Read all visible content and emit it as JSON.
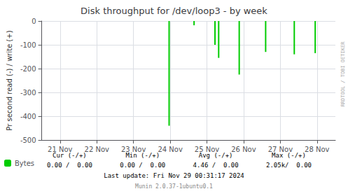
{
  "chart_data": {
    "type": "bar",
    "title": "Disk throughput for /dev/loop3 - by week",
    "ylabel": "Pr second read (-) / write (+)",
    "x": [
      3.47,
      4.15,
      4.72,
      4.82,
      5.38,
      6.1,
      6.88,
      7.45
    ],
    "series": [
      {
        "name": "Bytes",
        "color": "#00cc00",
        "values": [
          -440,
          -18,
          -100,
          -155,
          -225,
          -130,
          -140,
          -135
        ]
      }
    ],
    "xlim": [
      0,
      8
    ],
    "xticks": [
      {
        "value": 0.5,
        "label": "21 Nov"
      },
      {
        "value": 1.5,
        "label": "22 Nov"
      },
      {
        "value": 2.5,
        "label": "23 Nov"
      },
      {
        "value": 3.5,
        "label": "24 Nov"
      },
      {
        "value": 4.5,
        "label": "25 Nov"
      },
      {
        "value": 5.5,
        "label": "26 Nov"
      },
      {
        "value": 6.5,
        "label": "27 Nov"
      },
      {
        "value": 7.5,
        "label": "28 Nov"
      }
    ],
    "ylim": [
      -500,
      0
    ],
    "yticks": [
      0,
      -100,
      -200,
      -300,
      -400,
      -500
    ],
    "grid": true,
    "legend": "lower left",
    "footer": {
      "columns": [
        "Cur (-/+)",
        "Min (-/+)",
        "Avg (-/+)",
        "Max (-/+)"
      ],
      "values": [
        "0.00 /  0.00",
        "0.00 /  0.00",
        "4.46 /  0.00",
        "2.05k/  0.00"
      ]
    },
    "annotations": [
      "Last update: Fri Nov 29 00:31:17 2024",
      "Munin 2.0.37-1ubuntu0.1",
      "RRDTOOL / TOBI OETIKER"
    ]
  }
}
